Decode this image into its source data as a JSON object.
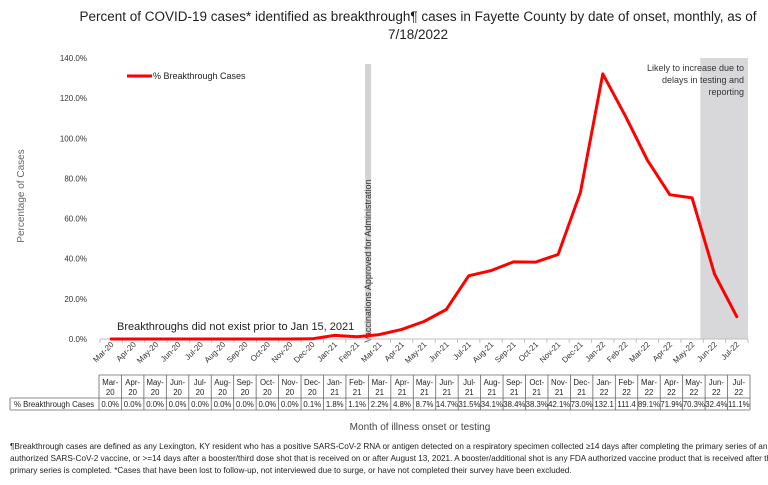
{
  "chart_data": {
    "type": "line",
    "title": "Percent of COVID-19 cases* identified as breakthrough¶ cases in Fayette County by date of onset, monthly, as of",
    "title_line2": "7/18/2022",
    "ylabel": "Percentage of Cases",
    "xlabel": "Month of illness onset or testing",
    "ylim": [
      0,
      140
    ],
    "yticks": [
      "0.0%",
      "20.0%",
      "40.0%",
      "60.0%",
      "80.0%",
      "100.0%",
      "120.0%",
      "140.0%"
    ],
    "categories": [
      "Mar-20",
      "Apr-20",
      "May-20",
      "Jun-20",
      "Jul-20",
      "Aug-20",
      "Sep-20",
      "Oct-20",
      "Nov-20",
      "Dec-20",
      "Jan-21",
      "Feb-21",
      "Mar-21",
      "Apr-21",
      "May-21",
      "Jun-21",
      "Jul-21",
      "Aug-21",
      "Sep-21",
      "Oct-21",
      "Nov-21",
      "Dec-21",
      "Jan-22",
      "Feb-22",
      "Mar-22",
      "Apr-22",
      "May-22",
      "Jun-22",
      "Jul-22"
    ],
    "table_top": [
      "Mar-",
      "Apr-",
      "May-",
      "Jun-",
      "Jul-",
      "Aug-",
      "Sep-",
      "Oct-",
      "Nov-",
      "Dec-",
      "Jan-",
      "Feb-",
      "Mar-",
      "Apr-",
      "May-",
      "Jun-",
      "Jul-",
      "Aug-",
      "Sep-",
      "Oct-",
      "Nov-",
      "Dec-",
      "Jan-",
      "Feb-",
      "Mar-",
      "Apr-",
      "May-",
      "Jun-",
      "Jul-"
    ],
    "table_bottom": [
      "20",
      "20",
      "20",
      "20",
      "20",
      "20",
      "20",
      "20",
      "20",
      "20",
      "21",
      "21",
      "21",
      "21",
      "21",
      "21",
      "21",
      "21",
      "21",
      "21",
      "21",
      "21",
      "22",
      "22",
      "22",
      "22",
      "22",
      "22",
      "22"
    ],
    "series": [
      {
        "name": "% Breakthrough Cases",
        "color": "#ff0000",
        "values": [
          0.0,
          0.0,
          0.0,
          0.0,
          0.0,
          0.0,
          0.0,
          0.0,
          0.0,
          0.1,
          1.8,
          1.1,
          2.2,
          4.8,
          8.7,
          14.7,
          31.5,
          34.1,
          38.4,
          38.3,
          42.1,
          73.0,
          132.1,
          111.4,
          89.1,
          71.9,
          70.3,
          32.4,
          11.1
        ],
        "labels": [
          "0.0%",
          "0.0%",
          "0.0%",
          "0.0%",
          "0.0%",
          "0.0%",
          "0.0%",
          "0.0%",
          "0.0%",
          "0.1%",
          "1.8%",
          "1.1%",
          "2.2%",
          "4.8%",
          "8.7%",
          "14.7%",
          "31.5%",
          "34.1%",
          "38.4%",
          "38.3%",
          "42.1%",
          "73.0%",
          "132.1",
          "111.4",
          "89.1%",
          "71.9%",
          "70.3%",
          "32.4%",
          "11.1%"
        ]
      }
    ],
    "legend": {
      "label": "% Breakthrough Cases",
      "placement": "top-left"
    },
    "vaccination_band": {
      "after_category": "Feb-21",
      "label": "Vaccinations Approved for Administration",
      "color": "#d3d3d3"
    },
    "shaded_region": {
      "from_category": "Jun-22",
      "label": "Likely to increase due to delays in testing and reporting",
      "label_lines": [
        "Likely to increase due to",
        "delays in testing and",
        "reporting"
      ],
      "color": "#d8d8da"
    },
    "annotation": "Breakthroughs did not exist prior to Jan 15, 2021",
    "gridlines": false
  },
  "footnote": {
    "lines": [
      "¶Breakthrough cases are defined as any Lexington, KY resident who has a positive SARS-CoV-2 RNA or antigen detected on a respiratory specimen collected ≥14 days after completing the primary series of an FDA-",
      "authorized SARS-CoV-2 vaccine, or >=14 days after a booster/third dose shot that is received on or after August 13, 2021.  A booster/additional shot is any FDA authorized vaccine product that is received after the",
      "primary series is completed.  *Cases that have been lost to follow-up, not interviewed due to surge, or have not completed their survey have been excluded."
    ]
  }
}
